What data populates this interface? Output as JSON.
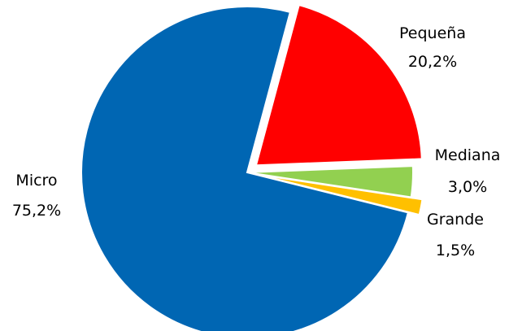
{
  "chart_data": {
    "type": "pie",
    "title": "",
    "slices": [
      {
        "name": "Pequeña",
        "value": 20.2,
        "value_label": "20,2%",
        "color": "#FF0000",
        "exploded": true
      },
      {
        "name": "Mediana",
        "value": 3.0,
        "value_label": "3,0%",
        "color": "#92D050",
        "exploded": false
      },
      {
        "name": "Grande",
        "value": 1.5,
        "value_label": "1,5%",
        "color": "#FFC000",
        "exploded": true
      },
      {
        "name": "Micro",
        "value": 75.2,
        "value_label": "75,2%",
        "color": "#0066B3",
        "exploded": false
      }
    ],
    "start_angle_deg": -75,
    "direction": "clockwise",
    "legend": "none"
  }
}
